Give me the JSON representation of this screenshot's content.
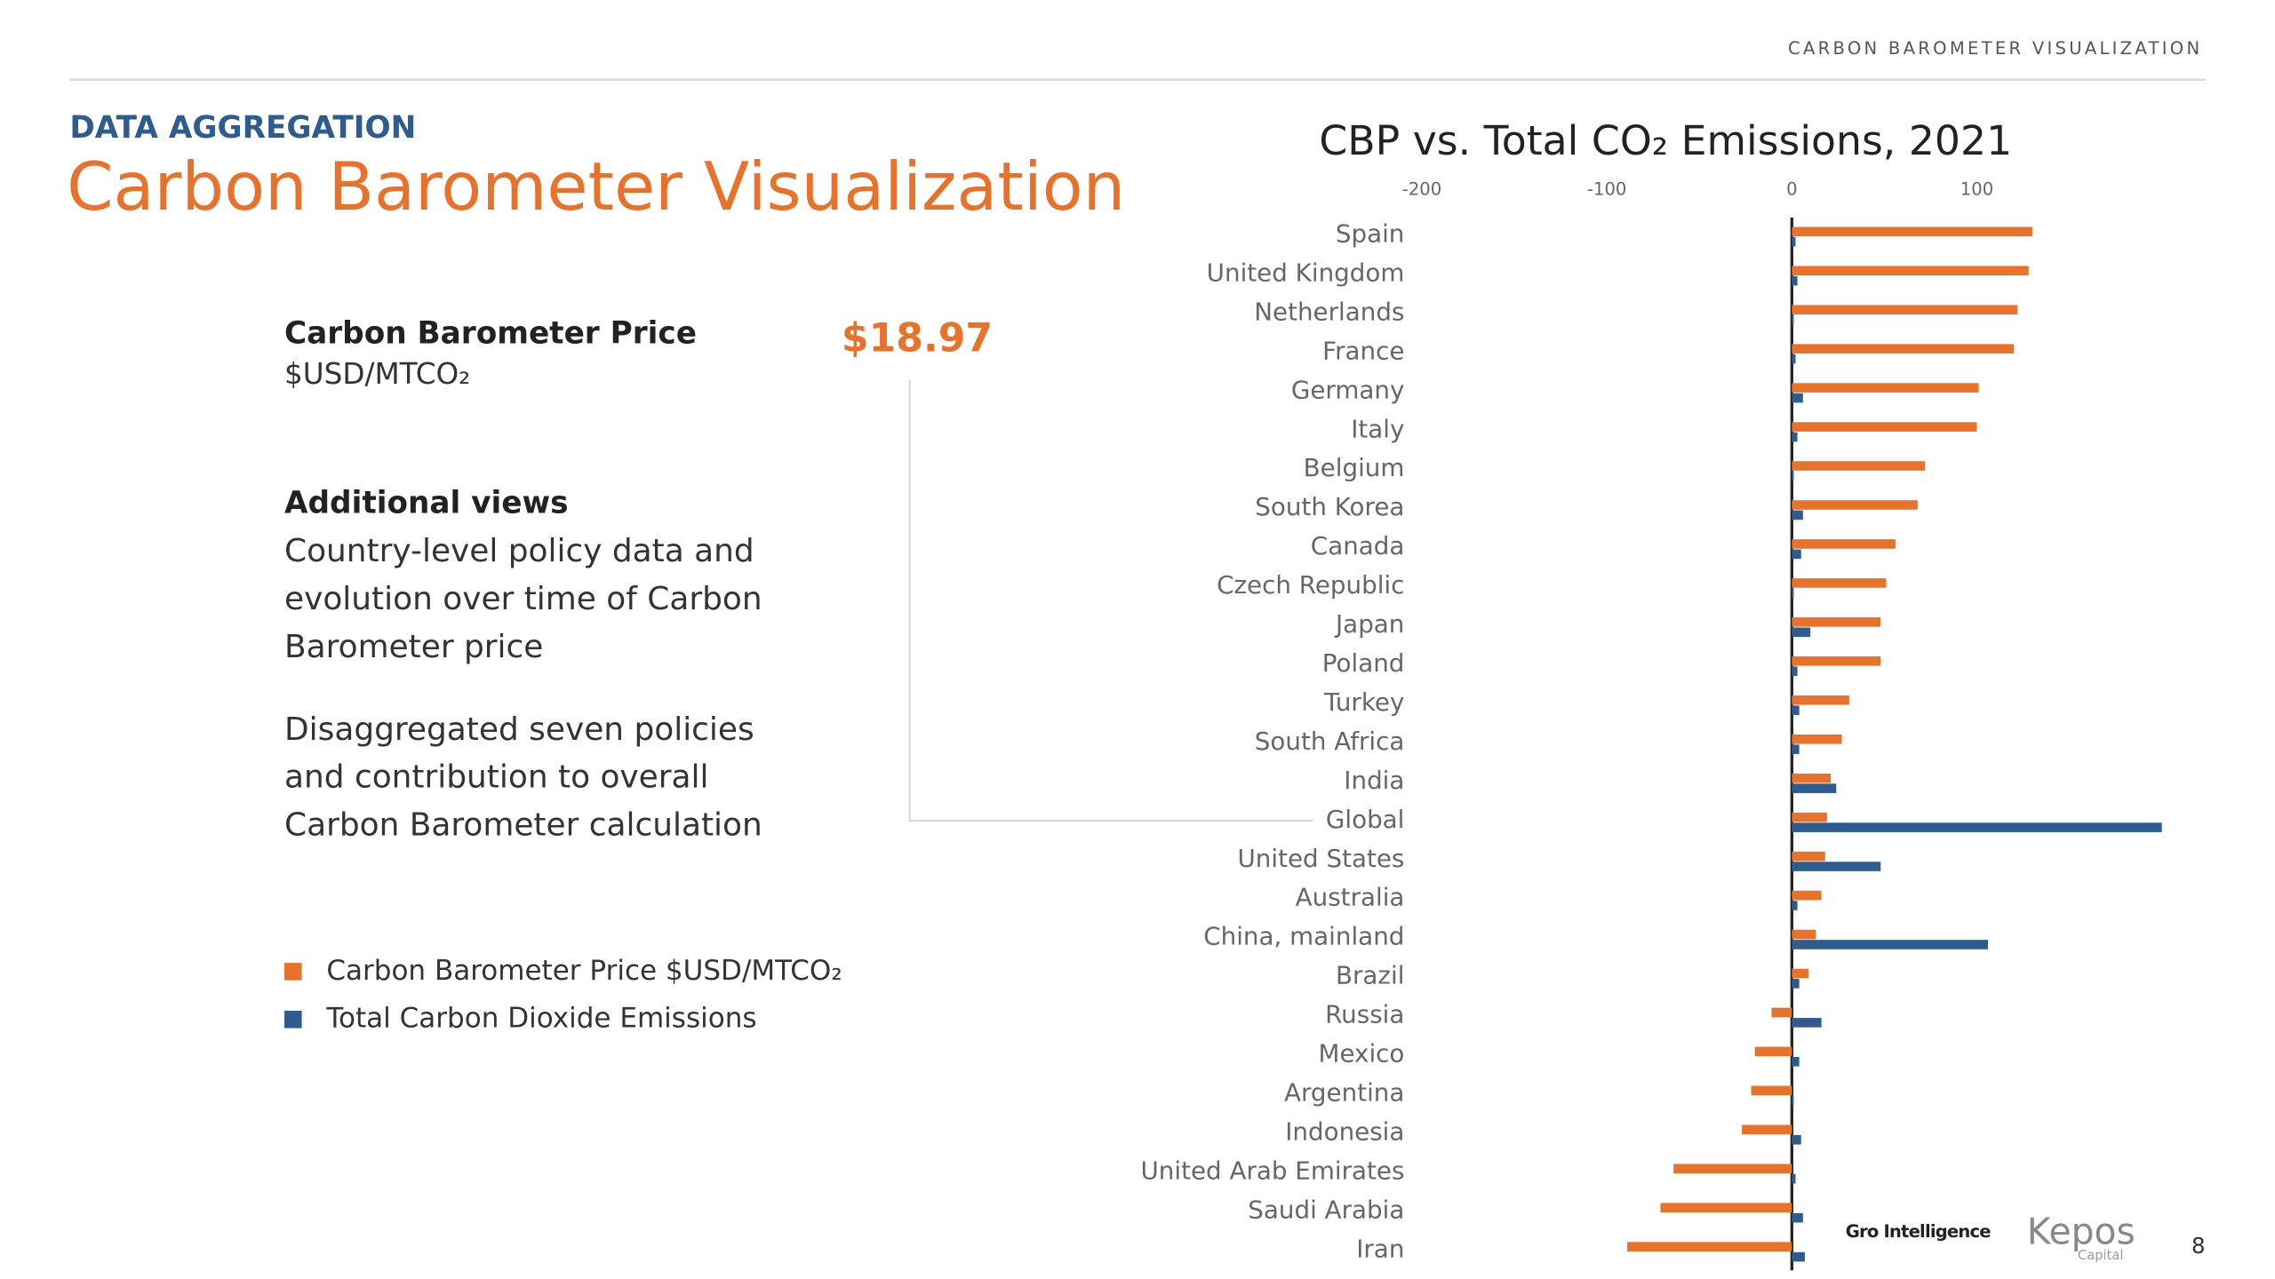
{
  "header": {
    "section": "CARBON BAROMETER VISUALIZATION",
    "kicker": "DATA AGGREGATION",
    "title": "Carbon Barometer Visualization"
  },
  "price": {
    "label": "Carbon Barometer Price",
    "unit": "$USD/MTCO₂",
    "value": "$18.97"
  },
  "additional": {
    "heading": "Additional views",
    "paragraph1": [
      "Country-level policy data and",
      "evolution over time of Carbon",
      "Barometer price"
    ],
    "paragraph2": [
      "Disaggregated seven policies",
      "and contribution to overall",
      "Carbon Barometer calculation"
    ]
  },
  "footer": {
    "logo1": "Gro Intelligence",
    "logo2": "Kepos",
    "logo2_sub": "Capital",
    "page": "8"
  },
  "chart_data": {
    "type": "hbar",
    "title": "CBP vs. Total CO₂ Emissions, 2021",
    "categories": [
      "Spain",
      "United Kingdom",
      "Netherlands",
      "France",
      "Germany",
      "Italy",
      "Belgium",
      "South Korea",
      "Canada",
      "Czech Republic",
      "Japan",
      "Poland",
      "Turkey",
      "South Africa",
      "India",
      "Global",
      "United States",
      "Australia",
      "China, mainland",
      "Brazil",
      "Russia",
      "Mexico",
      "Argentina",
      "Indonesia",
      "United Arab Emirates",
      "Saudi Arabia",
      "Iran"
    ],
    "series": [
      {
        "name": "Carbon Barometer Price $USD/MTCO₂",
        "color": "#e8722a",
        "values": [
          130,
          128,
          122,
          120,
          101,
          100,
          72,
          68,
          56,
          51,
          48,
          48,
          31,
          27,
          21,
          19,
          18,
          16,
          13,
          9,
          -11,
          -20,
          -22,
          -27,
          -64,
          -71,
          -89
        ]
      },
      {
        "name": "Total Carbon Dioxide Emissions",
        "color": "#2e5c8f",
        "values": [
          2,
          3,
          1,
          2,
          6,
          3,
          1,
          6,
          5,
          1,
          10,
          3,
          4,
          4,
          24,
          200,
          48,
          3,
          106,
          4,
          16,
          4,
          1,
          5,
          2,
          6,
          7
        ]
      }
    ],
    "xlim": [
      -200,
      200
    ],
    "xticks": [
      -200,
      -100,
      0,
      100
    ],
    "grid": false
  }
}
